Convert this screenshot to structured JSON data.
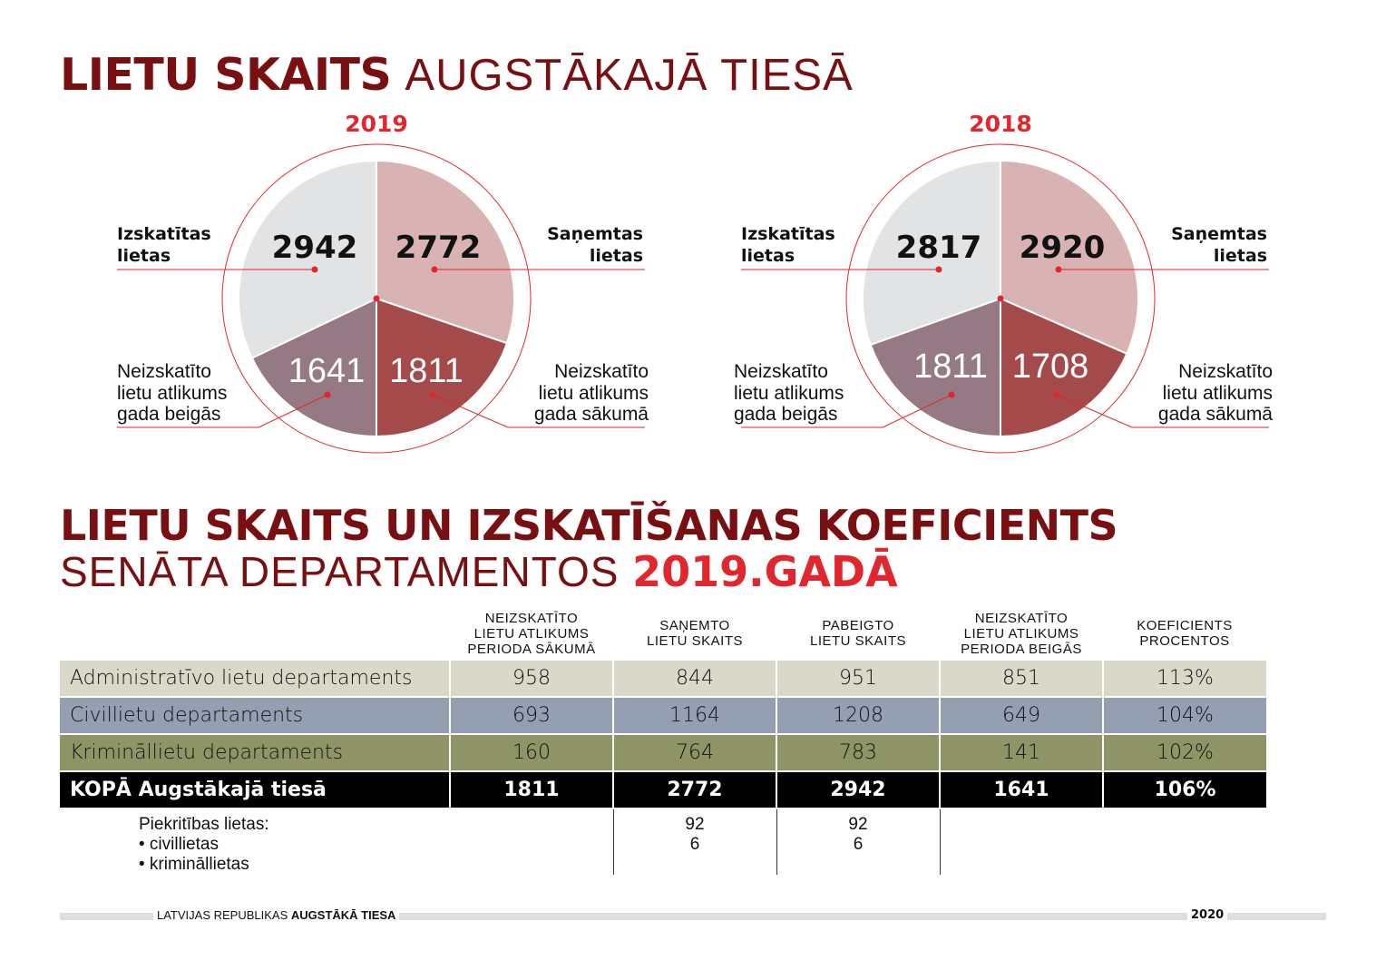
{
  "heading1": {
    "bold": "LIETU SKAITS",
    "light": "AUGSTĀKAJĀ TIESĀ"
  },
  "heading2": {
    "line1": "LIETU SKAITS UN IZSKATĪŠANAS KOEFICIENTS",
    "line2_light": "SENĀTA DEPARTAMENTOS",
    "line2_red": "2019.GADĀ"
  },
  "labels": {
    "izskatitas_1": "Izskatītas",
    "izskatitas_2": "lietas",
    "sanemtas_1": "Saņemtas",
    "sanemtas_2": "lietas",
    "beigas_1": "Neizskatīto",
    "beigas_2": "lietu atlikums",
    "beigas_3": "gada beigās",
    "sakuma_1": "Neizskatīto",
    "sakuma_2": "lietu atlikums",
    "sakuma_3": "gada sākumā"
  },
  "colors": {
    "izskatitas": "#e2e3e5",
    "sanemtas": "#d9b3b3",
    "beigas": "#957a85",
    "sakuma": "#a54a4b",
    "accent": "#e1262d",
    "dark_red": "#7a0f12"
  },
  "chart_data": [
    {
      "type": "pie",
      "title": "2019",
      "slices": [
        {
          "name": "Izskatītas lietas",
          "value": 2942
        },
        {
          "name": "Saņemtas lietas",
          "value": 2772
        },
        {
          "name": "Neizskatīto lietu atlikums gada sākumā",
          "value": 1811
        },
        {
          "name": "Neizskatīto lietu atlikums gada beigās",
          "value": 1641
        }
      ]
    },
    {
      "type": "pie",
      "title": "2018",
      "slices": [
        {
          "name": "Izskatītas lietas",
          "value": 2817
        },
        {
          "name": "Saņemtas lietas",
          "value": 2920
        },
        {
          "name": "Neizskatīto lietu atlikums gada sākumā",
          "value": 1708
        },
        {
          "name": "Neizskatīto lietu atlikums gada beigās",
          "value": 1811
        }
      ]
    },
    {
      "type": "table",
      "columns": [
        [
          "NEIZSKATĪTO",
          "LIETU ATLIKUMS",
          "PERIODA SĀKUMĀ"
        ],
        [
          "SAŅEMTO",
          "LIETU SKAITS"
        ],
        [
          "PABEIGTO",
          "LIETU SKAITS"
        ],
        [
          "NEIZSKATĪTO",
          "LIETU ATLIKUMS",
          "PERIODA BEIGĀS"
        ],
        [
          "KOEFICIENTS",
          "PROCENTOS"
        ]
      ],
      "rows": [
        {
          "name": "Administratīvo lietu departaments",
          "values": [
            "958",
            "844",
            "951",
            "851",
            "113%"
          ],
          "color": "#dad8c8"
        },
        {
          "name": "Civillietu departaments",
          "values": [
            "693",
            "1164",
            "1208",
            "649",
            "104%"
          ],
          "color": "#949fb2"
        },
        {
          "name": "Krimināllietu departaments",
          "values": [
            "160",
            "764",
            "783",
            "141",
            "102%"
          ],
          "color": "#8f9466"
        },
        {
          "name": "KOPĀ Augstākajā tiesā",
          "values": [
            "1811",
            "2772",
            "2942",
            "1641",
            "106%"
          ],
          "color": "#000000"
        }
      ],
      "sub": {
        "title": "Piekritības lietas:",
        "items": [
          "• civillietas",
          "• krimināllietas"
        ],
        "received": [
          "92",
          "6"
        ],
        "completed": [
          "92",
          "6"
        ]
      }
    }
  ],
  "footer": {
    "prefix": "LATVIJAS REPUBLIKAS",
    "bold": "AUGSTĀKĀ TIESA",
    "year": "2020"
  }
}
